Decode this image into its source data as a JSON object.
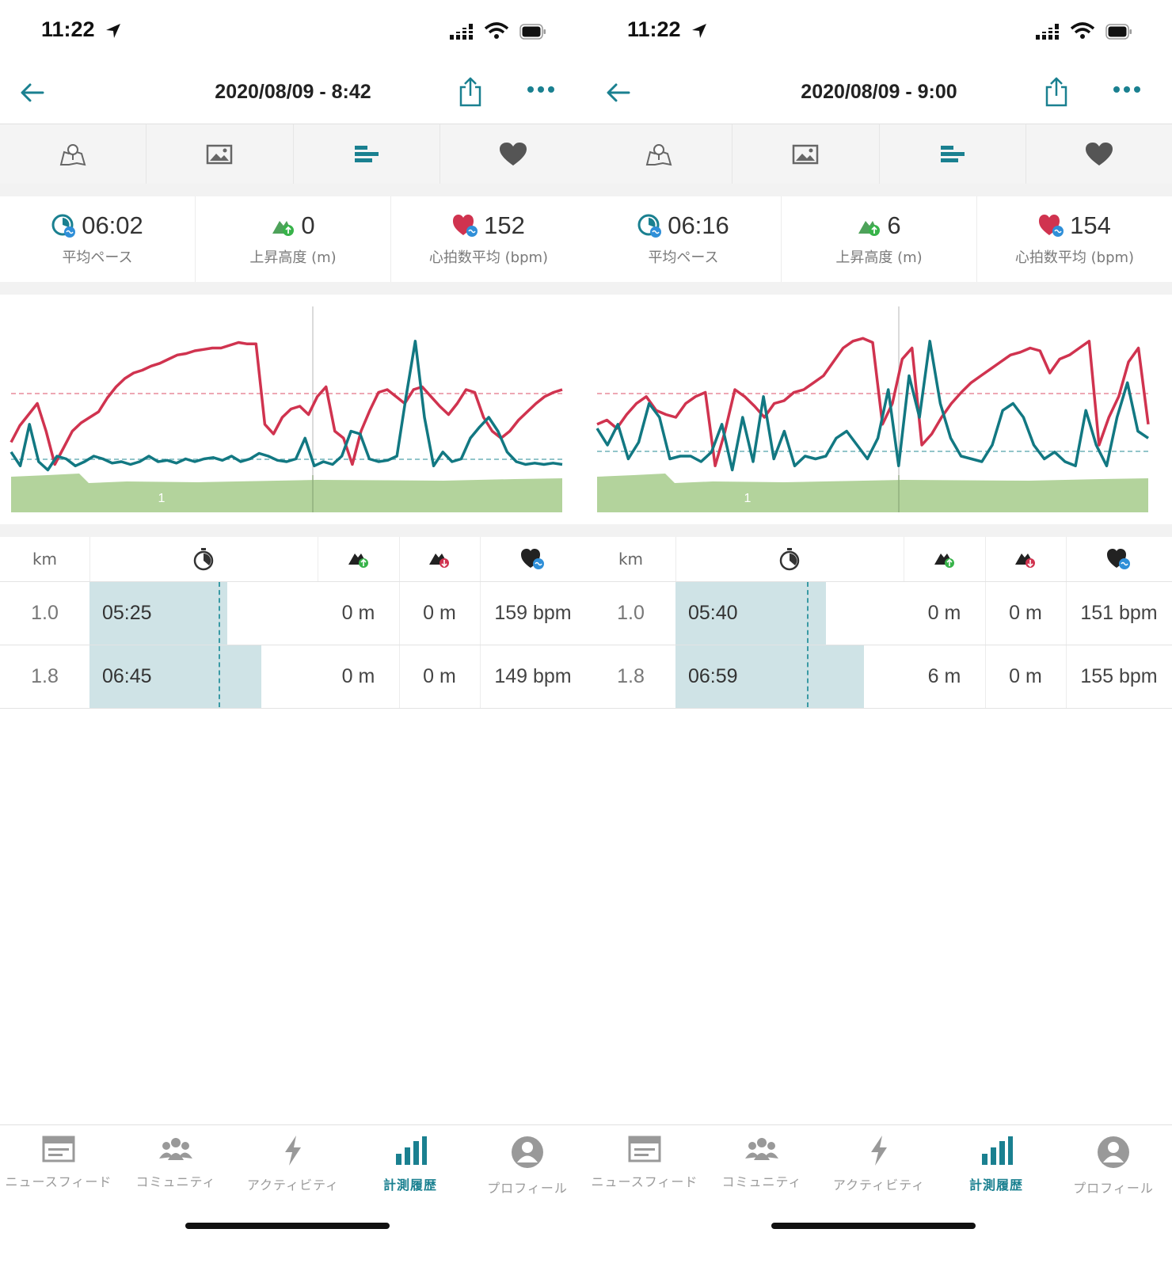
{
  "colors": {
    "accent": "#1a8090",
    "heart": "#d0334f",
    "pace_line": "#127882",
    "elevation": "#b3d39c",
    "pace_bar": "#cfe3e6"
  },
  "panels": [
    {
      "status": {
        "time": "11:22"
      },
      "header": {
        "title": "2020/08/09 - 8:42"
      },
      "tabs": [
        "map-icon",
        "photo-icon",
        "bar-chart-icon",
        "heart-icon"
      ],
      "stats": [
        {
          "value": "06:02",
          "label": "平均ペース",
          "icon": "pace-icon"
        },
        {
          "value": "0",
          "label": "上昇高度 (m)",
          "icon": "ascent-icon"
        },
        {
          "value": "152",
          "label": "心拍数平均 (bpm)",
          "icon": "heart-rate-icon"
        }
      ],
      "chart_data": {
        "type": "line",
        "series": [
          {
            "values": [
              0.22,
              0.34,
              0.42,
              0.5,
              0.3,
              0.06,
              0.18,
              0.3,
              0.36,
              0.4,
              0.44,
              0.54,
              0.62,
              0.68,
              0.72,
              0.74,
              0.77,
              0.79,
              0.82,
              0.85,
              0.86,
              0.88,
              0.89,
              0.9,
              0.9,
              0.92,
              0.94,
              0.93,
              0.93,
              0.35,
              0.28,
              0.4,
              0.46,
              0.48,
              0.42,
              0.55,
              0.62,
              0.3,
              0.25,
              0.06,
              0.3,
              0.45,
              0.58,
              0.6,
              0.55,
              0.5,
              0.6,
              0.62,
              0.55,
              0.48,
              0.42,
              0.5,
              0.6,
              0.58,
              0.4,
              0.3,
              0.25,
              0.3,
              0.38,
              0.44,
              0.5,
              0.55,
              0.58,
              0.6
            ]
          },
          {
            "values": [
              0.15,
              0.05,
              0.35,
              0.08,
              0.02,
              0.12,
              0.1,
              0.05,
              0.08,
              0.12,
              0.1,
              0.07,
              0.08,
              0.06,
              0.08,
              0.12,
              0.08,
              0.09,
              0.07,
              0.1,
              0.08,
              0.1,
              0.11,
              0.09,
              0.12,
              0.08,
              0.1,
              0.14,
              0.12,
              0.09,
              0.08,
              0.1,
              0.25,
              0.05,
              0.08,
              0.06,
              0.12,
              0.3,
              0.28,
              0.1,
              0.08,
              0.09,
              0.12,
              0.55,
              0.95,
              0.4,
              0.05,
              0.15,
              0.08,
              0.1,
              0.25,
              0.33,
              0.4,
              0.3,
              0.15,
              0.08,
              0.06,
              0.07,
              0.06,
              0.07,
              0.06
            ]
          }
        ],
        "elevation_label": "1"
      },
      "table": {
        "headers": [
          "km",
          "stopwatch-icon",
          "ascent-icon",
          "descent-icon",
          "heart-rate-icon"
        ],
        "rows": [
          {
            "km": "1.0",
            "pace": "05:25",
            "pace_fill": 0.605,
            "up": "0 m",
            "down": "0 m",
            "hr": "159 bpm"
          },
          {
            "km": "1.8",
            "pace": "06:45",
            "pace_fill": 0.753,
            "up": "0 m",
            "down": "0 m",
            "hr": "149 bpm"
          }
        ]
      }
    },
    {
      "status": {
        "time": "11:22"
      },
      "header": {
        "title": "2020/08/09 - 9:00"
      },
      "tabs": [
        "map-icon",
        "photo-icon",
        "bar-chart-icon",
        "heart-icon"
      ],
      "stats": [
        {
          "value": "06:16",
          "label": "平均ペース",
          "icon": "pace-icon"
        },
        {
          "value": "6",
          "label": "上昇高度 (m)",
          "icon": "ascent-icon"
        },
        {
          "value": "154",
          "label": "心拍数平均 (bpm)",
          "icon": "heart-rate-icon"
        }
      ],
      "chart_data": {
        "type": "line",
        "series": [
          {
            "values": [
              0.35,
              0.38,
              0.32,
              0.42,
              0.5,
              0.55,
              0.45,
              0.42,
              0.4,
              0.5,
              0.55,
              0.58,
              0.05,
              0.3,
              0.6,
              0.55,
              0.48,
              0.4,
              0.5,
              0.52,
              0.58,
              0.6,
              0.65,
              0.7,
              0.8,
              0.9,
              0.95,
              0.97,
              0.94,
              0.35,
              0.5,
              0.82,
              0.9,
              0.2,
              0.28,
              0.4,
              0.5,
              0.58,
              0.65,
              0.7,
              0.75,
              0.8,
              0.85,
              0.87,
              0.9,
              0.88,
              0.72,
              0.82,
              0.85,
              0.9,
              0.95,
              0.2,
              0.4,
              0.55,
              0.8,
              0.9,
              0.35
            ]
          },
          {
            "values": [
              0.32,
              0.2,
              0.35,
              0.1,
              0.22,
              0.5,
              0.4,
              0.1,
              0.12,
              0.12,
              0.08,
              0.15,
              0.35,
              0.02,
              0.4,
              0.08,
              0.55,
              0.1,
              0.3,
              0.05,
              0.12,
              0.1,
              0.12,
              0.25,
              0.3,
              0.2,
              0.1,
              0.25,
              0.6,
              0.05,
              0.7,
              0.4,
              0.95,
              0.5,
              0.25,
              0.12,
              0.1,
              0.08,
              0.2,
              0.45,
              0.5,
              0.4,
              0.2,
              0.1,
              0.15,
              0.08,
              0.05,
              0.45,
              0.2,
              0.05,
              0.4,
              0.65,
              0.3,
              0.25
            ]
          }
        ],
        "elevation_label": "1"
      },
      "table": {
        "headers": [
          "km",
          "stopwatch-icon",
          "ascent-icon",
          "descent-icon",
          "heart-rate-icon"
        ],
        "rows": [
          {
            "km": "1.0",
            "pace": "05:40",
            "pace_fill": 0.66,
            "up": "0 m",
            "down": "0 m",
            "hr": "151 bpm"
          },
          {
            "km": "1.8",
            "pace": "06:59",
            "pace_fill": 0.825,
            "up": "6 m",
            "down": "0 m",
            "hr": "155 bpm"
          }
        ]
      }
    }
  ],
  "nav": [
    {
      "label": "ニュースフィード",
      "icon": "newsfeed-icon"
    },
    {
      "label": "コミュニティ",
      "icon": "community-icon"
    },
    {
      "label": "アクティビティ",
      "icon": "activity-bolt-icon"
    },
    {
      "label": "計測履歴",
      "icon": "history-chart-icon",
      "active": true
    },
    {
      "label": "プロフィール",
      "icon": "profile-icon"
    }
  ]
}
